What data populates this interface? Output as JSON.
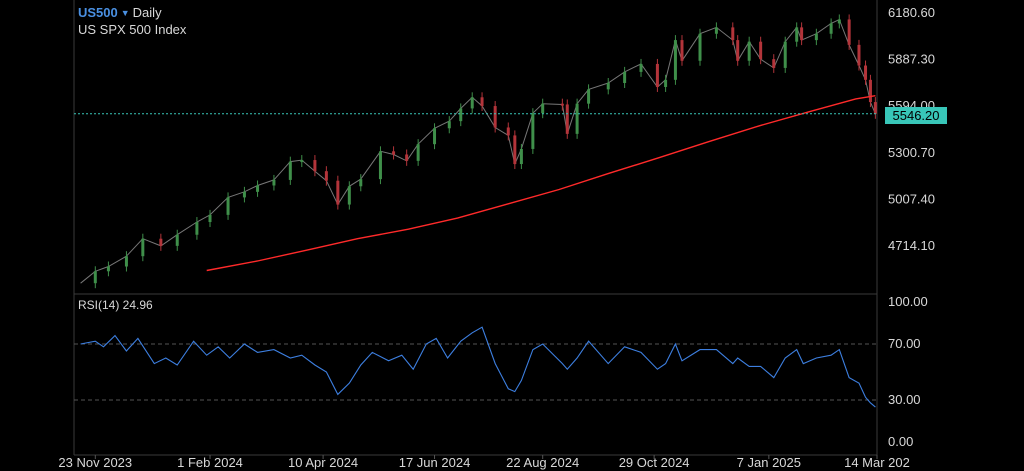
{
  "header": {
    "symbol": "US500",
    "interval": "Daily",
    "instrument_name": "US SPX 500 Index",
    "last_price": "5546.20"
  },
  "colors": {
    "background": "#000000",
    "price_line": "#d8d8d8",
    "up_candle": "#3f8f4a",
    "down_candle": "#b3343a",
    "sma": "#ff2a2a",
    "rsi": "#3d7fe0",
    "last_price_line": "#38c6b8",
    "symbol": "#4a90e2"
  },
  "chart_data": [
    {
      "type": "candlestick",
      "pane": "price",
      "title": "US SPX 500 Index",
      "series": [
        {
          "name": "",
          "kind": "close_line",
          "x": [
            "2023-11-14",
            "2023-11-23",
            "2023-12-01",
            "2023-12-12",
            "2023-12-22",
            "2024-01-02",
            "2024-01-12",
            "2024-01-24",
            "2024-02-01",
            "2024-02-12",
            "2024-02-22",
            "2024-03-01",
            "2024-03-11",
            "2024-03-21",
            "2024-03-28",
            "2024-04-05",
            "2024-04-12",
            "2024-04-19",
            "2024-04-26",
            "2024-05-03",
            "2024-05-15",
            "2024-05-23",
            "2024-05-31",
            "2024-06-07",
            "2024-06-17",
            "2024-06-26",
            "2024-07-03",
            "2024-07-10",
            "2024-07-16",
            "2024-07-24",
            "2024-08-01",
            "2024-08-05",
            "2024-08-09",
            "2024-08-16",
            "2024-08-22",
            "2024-09-03",
            "2024-09-06",
            "2024-09-12",
            "2024-09-19",
            "2024-10-01",
            "2024-10-11",
            "2024-10-21",
            "2024-10-31",
            "2024-11-05",
            "2024-11-11",
            "2024-11-15",
            "2024-11-26",
            "2024-12-06",
            "2024-12-16",
            "2024-12-19",
            "2024-12-26",
            "2025-01-02",
            "2025-01-10",
            "2025-01-17",
            "2025-01-24",
            "2025-01-27",
            "2025-02-05",
            "2025-02-14",
            "2025-02-19",
            "2025-02-25",
            "2025-03-03",
            "2025-03-07",
            "2025-03-10",
            "2025-03-13"
          ],
          "y": [
            4480,
            4555,
            4585,
            4650,
            4760,
            4715,
            4785,
            4865,
            4910,
            5020,
            5055,
            5095,
            5130,
            5245,
            5255,
            5185,
            5125,
            4975,
            5090,
            5135,
            5310,
            5290,
            5250,
            5355,
            5455,
            5500,
            5580,
            5650,
            5595,
            5460,
            5410,
            5230,
            5325,
            5550,
            5610,
            5605,
            5420,
            5610,
            5700,
            5740,
            5810,
            5860,
            5715,
            5760,
            6010,
            5880,
            6050,
            6090,
            6010,
            5880,
            6000,
            5890,
            5835,
            6000,
            6090,
            6010,
            6050,
            6115,
            6140,
            5980,
            5850,
            5760,
            5620,
            5546.2
          ]
        },
        {
          "name": "",
          "kind": "moving_average",
          "x": [
            "2024-01-30",
            "2024-03-01",
            "2024-04-01",
            "2024-05-01",
            "2024-06-01",
            "2024-07-01",
            "2024-08-01",
            "2024-09-01",
            "2024-10-01",
            "2024-11-01",
            "2024-12-01",
            "2025-01-01",
            "2025-02-01",
            "2025-03-01",
            "2025-03-13"
          ],
          "y": [
            4560,
            4620,
            4690,
            4760,
            4820,
            4890,
            4980,
            5070,
            5170,
            5270,
            5370,
            5470,
            5560,
            5640,
            5660
          ]
        }
      ],
      "ylim": [
        4480,
        6280
      ],
      "y_ticks": [
        "6180.60",
        "5887.30",
        "5594.00",
        "5300.70",
        "5007.40",
        "4714.10"
      ],
      "grid": true,
      "last_value": 5546.2
    },
    {
      "type": "line",
      "pane": "rsi",
      "title": "RSI(14) 24.96",
      "series": [
        {
          "name": "",
          "x": [
            "2023-11-14",
            "2023-11-23",
            "2023-11-28",
            "2023-12-05",
            "2023-12-12",
            "2023-12-19",
            "2023-12-29",
            "2024-01-05",
            "2024-01-12",
            "2024-01-22",
            "2024-01-30",
            "2024-02-06",
            "2024-02-13",
            "2024-02-22",
            "2024-03-01",
            "2024-03-11",
            "2024-03-21",
            "2024-03-28",
            "2024-04-05",
            "2024-04-12",
            "2024-04-19",
            "2024-04-26",
            "2024-05-03",
            "2024-05-10",
            "2024-05-20",
            "2024-05-28",
            "2024-06-04",
            "2024-06-12",
            "2024-06-18",
            "2024-06-25",
            "2024-07-03",
            "2024-07-10",
            "2024-07-16",
            "2024-07-24",
            "2024-08-01",
            "2024-08-05",
            "2024-08-09",
            "2024-08-16",
            "2024-08-22",
            "2024-09-03",
            "2024-09-06",
            "2024-09-12",
            "2024-09-19",
            "2024-10-01",
            "2024-10-11",
            "2024-10-21",
            "2024-10-31",
            "2024-11-05",
            "2024-11-11",
            "2024-11-15",
            "2024-11-26",
            "2024-12-06",
            "2024-12-16",
            "2024-12-19",
            "2024-12-26",
            "2025-01-02",
            "2025-01-10",
            "2025-01-17",
            "2025-01-24",
            "2025-01-28",
            "2025-02-05",
            "2025-02-14",
            "2025-02-19",
            "2025-02-25",
            "2025-03-03",
            "2025-03-07",
            "2025-03-10",
            "2025-03-13"
          ],
          "y": [
            70,
            72,
            68,
            76,
            65,
            74,
            56,
            60,
            55,
            72,
            62,
            68,
            60,
            70,
            64,
            66,
            60,
            62,
            55,
            50,
            34,
            42,
            55,
            64,
            58,
            62,
            52,
            70,
            74,
            60,
            72,
            78,
            82,
            56,
            38,
            36,
            44,
            66,
            70,
            56,
            52,
            60,
            72,
            56,
            68,
            64,
            52,
            56,
            70,
            58,
            66,
            66,
            56,
            60,
            54,
            54,
            46,
            60,
            66,
            56,
            60,
            62,
            66,
            46,
            42,
            32,
            28,
            24.96
          ]
        }
      ],
      "ylim": [
        0,
        100
      ],
      "y_ticks": [
        "100.00",
        "70.00",
        "30.00",
        "0.00"
      ],
      "reference_lines": [
        70,
        30
      ]
    }
  ],
  "x_axis": {
    "labels": [
      {
        "text": "23 Nov 2023",
        "date": "2023-11-23"
      },
      {
        "text": "1 Feb 2024",
        "date": "2024-02-01"
      },
      {
        "text": "10 Apr 2024",
        "date": "2024-04-10"
      },
      {
        "text": "17 Jun 2024",
        "date": "2024-06-17"
      },
      {
        "text": "22 Aug 2024",
        "date": "2024-08-22"
      },
      {
        "text": "29 Oct 2024",
        "date": "2024-10-29"
      },
      {
        "text": "7 Jan 2025",
        "date": "2025-01-07"
      },
      {
        "text": "14 Mar 202",
        "date": "2025-03-14"
      }
    ],
    "range": [
      "2023-11-10",
      "2025-03-14"
    ]
  }
}
